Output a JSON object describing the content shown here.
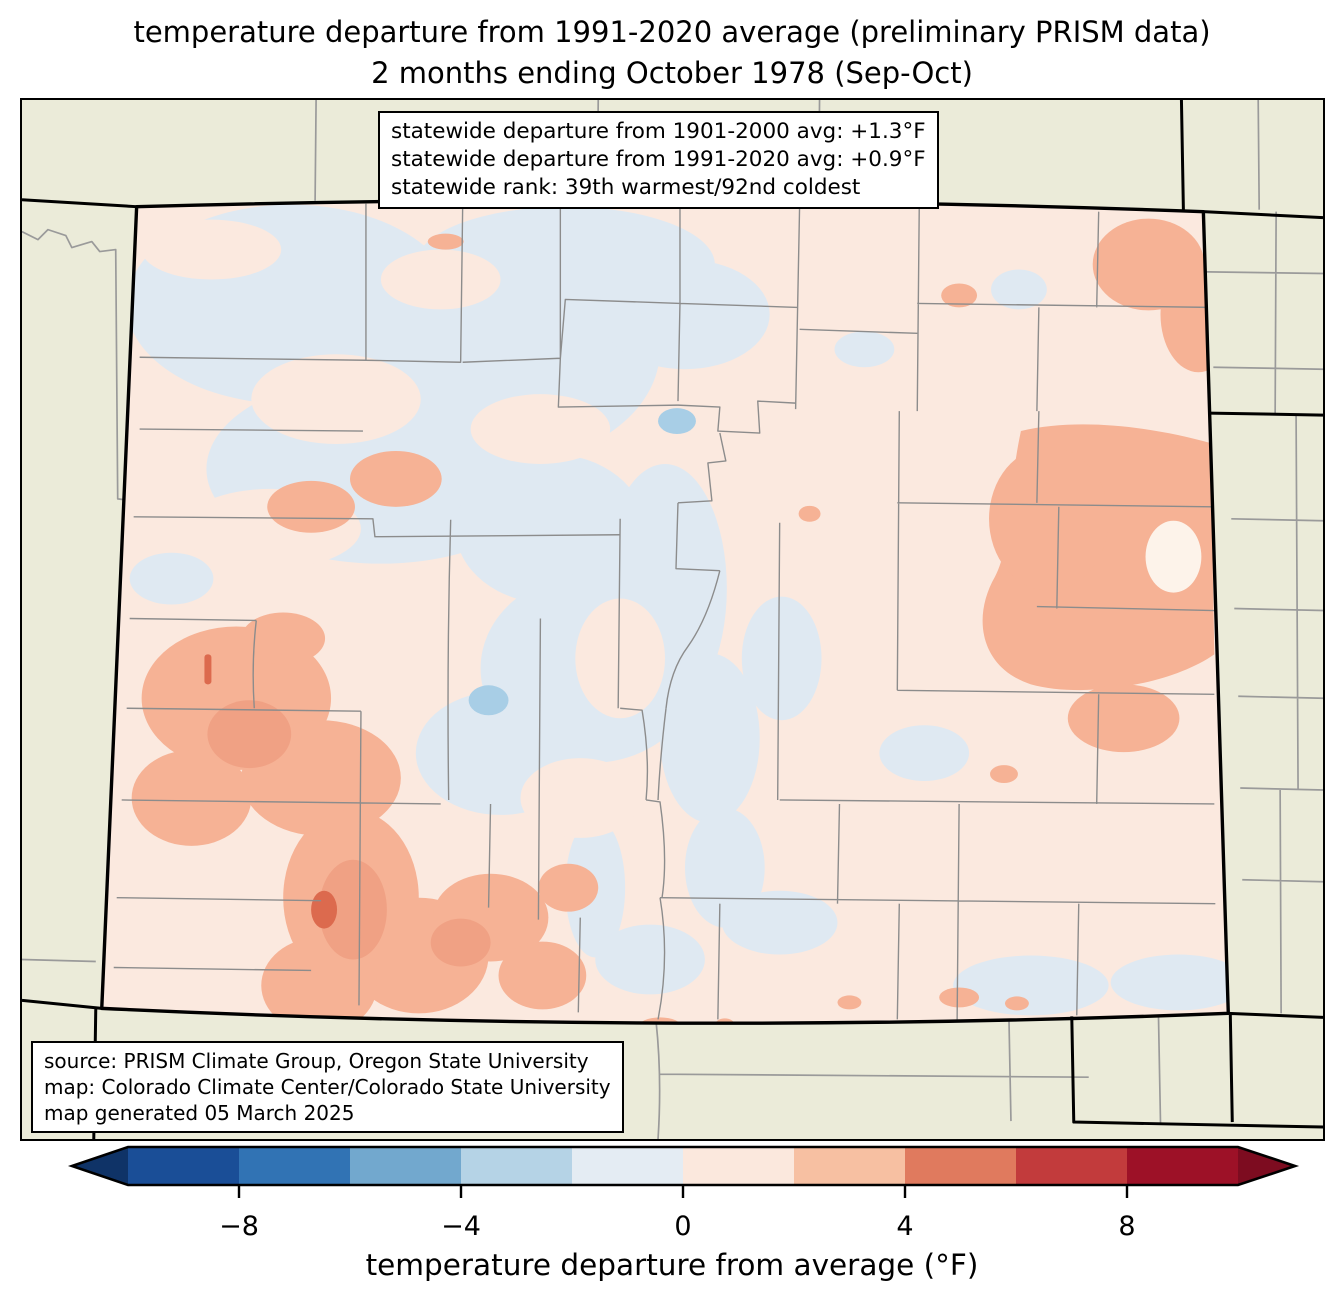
{
  "title": {
    "line1": "temperature departure from 1991-2020 average (preliminary PRISM data)",
    "line2": "2 months ending October 1978 (Sep-Oct)"
  },
  "stats_box": {
    "line1": "statewide departure from 1901-2000 avg: +1.3°F",
    "line2": "statewide departure from 1991-2020 avg: +0.9°F",
    "line3": "statewide rank: 39th warmest/92nd coldest"
  },
  "source_box": {
    "line1": "source: PRISM Climate Group, Oregon State University",
    "line2": "map: Colorado Climate Center/Colorado State University",
    "line3": "map generated 05 March 2025"
  },
  "colorbar": {
    "label": "temperature departure from average (°F)",
    "range": [
      -10,
      10
    ],
    "segment_step": 2,
    "segments": [
      "#1a4e97",
      "#3173b4",
      "#72a8ce",
      "#b5d3e6",
      "#e4ecf3",
      "#fbe8dd",
      "#f7c0a2",
      "#e07a5e",
      "#c23b3c",
      "#9d1127"
    ],
    "left_arrow": "#0f3367",
    "right_arrow": "#7d0c20",
    "ticks": [
      {
        "value": -8,
        "label": "−8"
      },
      {
        "value": -4,
        "label": "−4"
      },
      {
        "value": 0,
        "label": "0"
      },
      {
        "value": 4,
        "label": "4"
      },
      {
        "value": 8,
        "label": "8"
      }
    ]
  },
  "palette": {
    "background_outside": "#ebebd9",
    "state_base_pink": "#fbe9df",
    "cool_light_blue": "#dfe9f2",
    "warm_salmon": "#f6b295",
    "warm_salmon_deep": "#f0a184",
    "warm_orange_red": "#dc6a4e",
    "lake_blue": "#a8cee6",
    "cream": "#fdf3ea",
    "county_line": "#8c8c8c"
  },
  "chart_data": {
    "type": "choropleth_map",
    "region": "Colorado (with neighboring state borders and county lines)",
    "variable": "temperature departure from average (°F)",
    "period": "Sep-Oct 1978 (2 months ending October 1978)",
    "data_source": "preliminary PRISM data",
    "statewide_departure_from_1901_2000_avg_F": 1.3,
    "statewide_departure_from_1991_2020_avg_F": 0.9,
    "statewide_rank": "39th warmest/92nd coldest",
    "colorbar_range_F": [
      -10,
      10
    ],
    "colorbar_step_F": 2,
    "tick_values": [
      -8,
      -4,
      0,
      4,
      8
    ],
    "pattern_summary": "mostly weak warm anomaly (0 to +2°F) statewide; weak cool patches (0 to -2°F) in northwest and central mountains; +2 to +4°F pockets in west-central, southwest mountains and eastern plains; small +4 to +6°F core in southwest"
  }
}
